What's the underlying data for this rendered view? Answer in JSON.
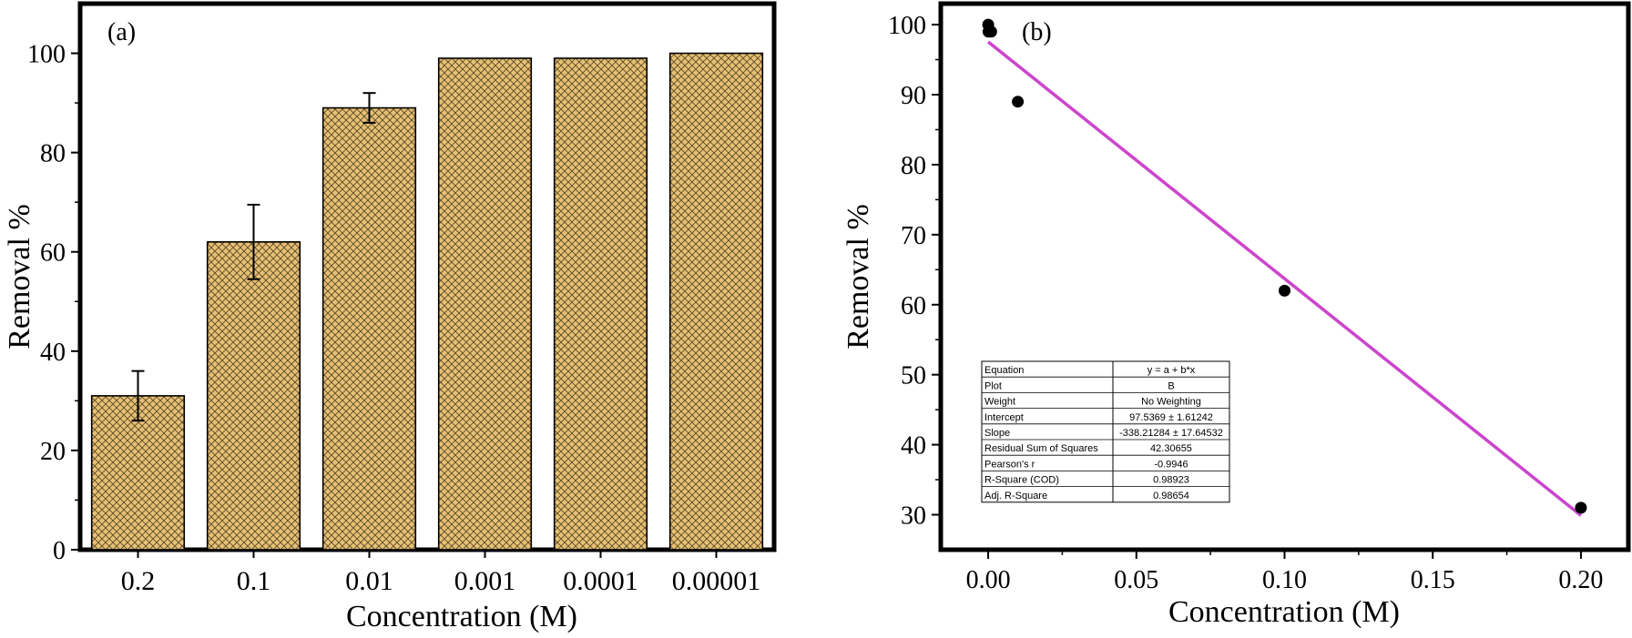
{
  "chart_data": [
    {
      "type": "bar",
      "panel_label": "(a)",
      "xlabel": "Concentration (M)",
      "ylabel": "Removal %",
      "categories": [
        "0.2",
        "0.1",
        "0.01",
        "0.001",
        "0.0001",
        "0.00001"
      ],
      "values": [
        31,
        62,
        89,
        99,
        99,
        100
      ],
      "errors": [
        5,
        7.5,
        3,
        0,
        0,
        0
      ],
      "ylim": [
        0,
        110
      ],
      "yticks": [
        0,
        20,
        40,
        60,
        80,
        100
      ],
      "bar_fill": "#e8c074",
      "hatch": "cross-hatch",
      "grid": false
    },
    {
      "type": "scatter",
      "panel_label": "(b)",
      "xlabel": "Concentration (M)",
      "ylabel": "Removal %",
      "x": [
        1e-05,
        0.0001,
        0.001,
        0.01,
        0.1,
        0.2
      ],
      "y": [
        100,
        99,
        99,
        89,
        62,
        31
      ],
      "xlim": [
        -0.016,
        0.216
      ],
      "ylim": [
        25,
        103
      ],
      "xticks": [
        0.0,
        0.05,
        0.1,
        0.15,
        0.2
      ],
      "xtick_labels": [
        "0.00",
        "0.05",
        "0.10",
        "0.15",
        "0.20"
      ],
      "yticks": [
        30,
        40,
        50,
        60,
        70,
        80,
        90,
        100
      ],
      "fit_line": {
        "intercept": 97.5369,
        "slope": -338.21284,
        "color": "#cc44cc"
      },
      "marker_color": "#000000",
      "grid": false,
      "fit_table": [
        [
          "Equation",
          "y = a + b*x"
        ],
        [
          "Plot",
          "B"
        ],
        [
          "Weight",
          "No Weighting"
        ],
        [
          "Intercept",
          "97.5369 ± 1.61242"
        ],
        [
          "Slope",
          "-338.21284 ± 17.64532"
        ],
        [
          "Residual Sum of Squares",
          "42.30655"
        ],
        [
          "Pearson's r",
          "-0.9946"
        ],
        [
          "R-Square (COD)",
          "0.98923"
        ],
        [
          "Adj. R-Square",
          "0.98654"
        ]
      ]
    }
  ]
}
